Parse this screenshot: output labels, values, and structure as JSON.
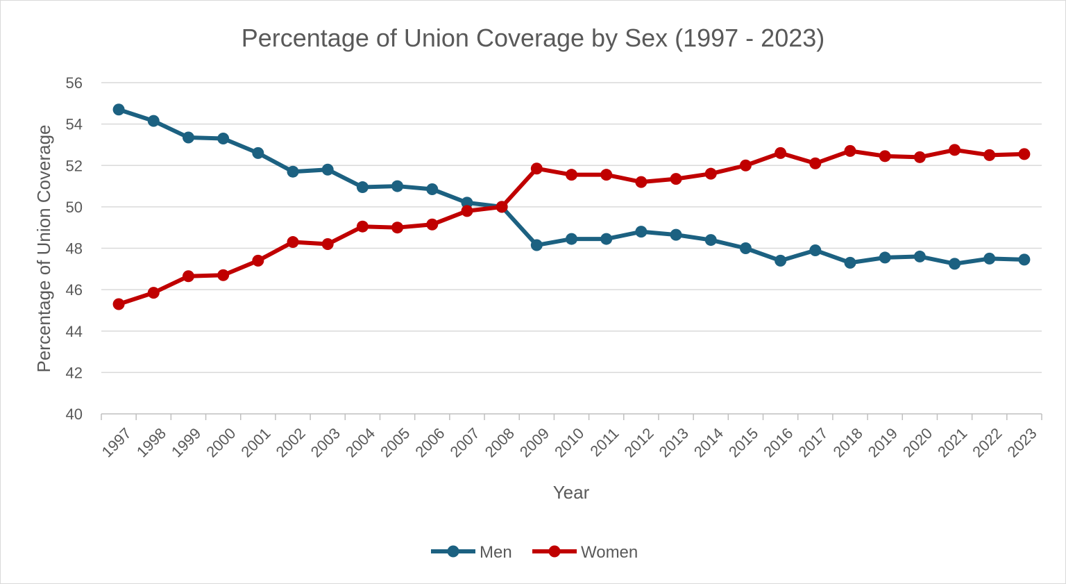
{
  "chart_data": {
    "type": "line",
    "title": "Percentage of Union Coverage by Sex (1997 - 2023)",
    "xlabel": "Year",
    "ylabel": "Percentage of Union Coverage",
    "ylim": [
      40,
      56
    ],
    "ytick_step": 2,
    "grid": true,
    "legend_position": "bottom-center",
    "categories": [
      "1997",
      "1998",
      "1999",
      "2000",
      "2001",
      "2002",
      "2003",
      "2004",
      "2005",
      "2006",
      "2007",
      "2008",
      "2009",
      "2010",
      "2011",
      "2012",
      "2013",
      "2014",
      "2015",
      "2016",
      "2017",
      "2018",
      "2019",
      "2020",
      "2021",
      "2022",
      "2023"
    ],
    "series": [
      {
        "name": "Men",
        "color": "#1c6181",
        "values": [
          54.7,
          54.15,
          53.35,
          53.3,
          52.6,
          51.7,
          51.8,
          50.95,
          51.0,
          50.85,
          50.2,
          50.0,
          48.15,
          48.45,
          48.45,
          48.8,
          48.65,
          48.4,
          48.0,
          47.4,
          47.9,
          47.3,
          47.55,
          47.6,
          47.25,
          47.5,
          47.45
        ]
      },
      {
        "name": "Women",
        "color": "#c00000",
        "values": [
          45.3,
          45.85,
          46.65,
          46.7,
          47.4,
          48.3,
          48.2,
          49.05,
          49.0,
          49.15,
          49.8,
          50.0,
          51.85,
          51.55,
          51.55,
          51.2,
          51.35,
          51.6,
          52.0,
          52.6,
          52.1,
          52.7,
          52.45,
          52.4,
          52.75,
          52.5,
          52.55
        ]
      }
    ]
  }
}
